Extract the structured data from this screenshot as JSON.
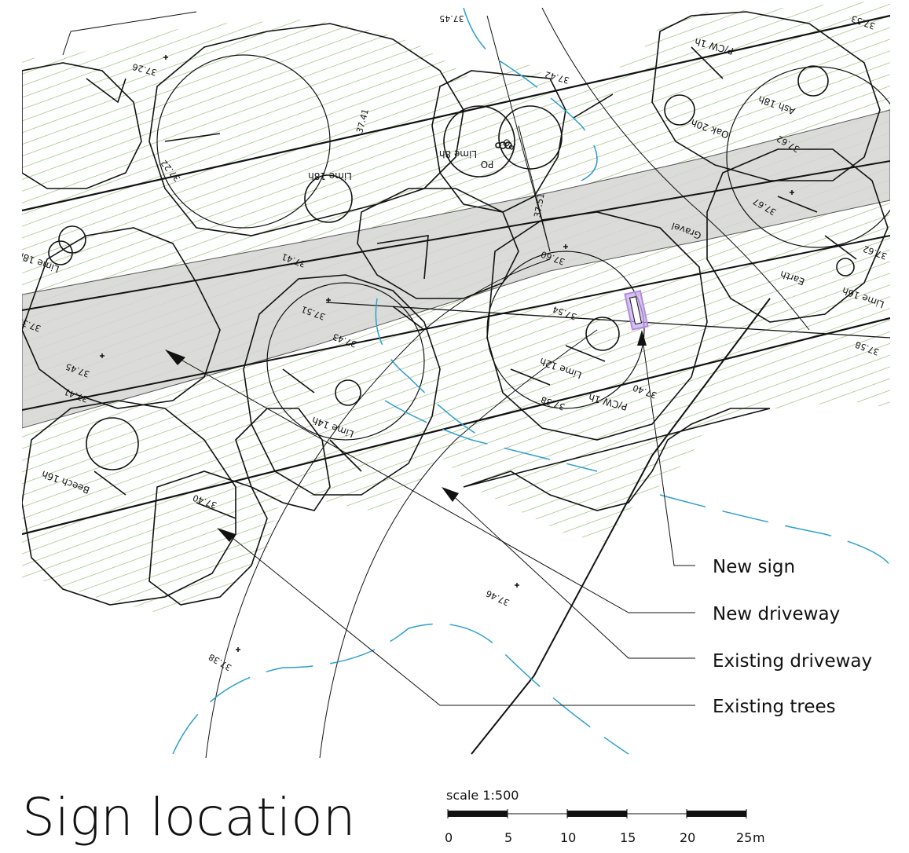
{
  "title": "Sign location",
  "scale": {
    "caption": "scale 1:500",
    "ticks": [
      "0",
      "5",
      "10",
      "15",
      "20",
      "25"
    ],
    "unit": "m"
  },
  "legend": [
    {
      "id": "new-sign",
      "label": "New sign"
    },
    {
      "id": "new-driveway",
      "label": "New driveway"
    },
    {
      "id": "existing-driveway",
      "label": "Existing driveway"
    },
    {
      "id": "existing-trees",
      "label": "Existing trees"
    }
  ],
  "trees": [
    "Lime 18h",
    "Lime 18h",
    "Lime 8h",
    "Oak 20h",
    "Ash 18h",
    "Lime 16h",
    "Lime 12h",
    "Lime 14h",
    "Beech 16h",
    "P/CW 1h",
    "P/CW 1h"
  ],
  "surface_labels": [
    "Gravel",
    "Earth",
    "PO",
    "PO"
  ],
  "levels": [
    "37.45",
    "37.26",
    "37.41",
    "37.22",
    "37.42",
    "37.53",
    "37.51",
    "37.60",
    "37.62",
    "37.67",
    "37.41",
    "37.62",
    "37.51",
    "37.43",
    "37.54",
    "37.40",
    "37.38",
    "37.45",
    "37.41",
    "37.33",
    "37.40",
    "37.46",
    "37.38",
    "37.58"
  ],
  "colors": {
    "hatch": "#8db36a",
    "driveway_fill": "#d5d6d2",
    "contour": "#2a9fcf",
    "sign": "#b38be0"
  }
}
